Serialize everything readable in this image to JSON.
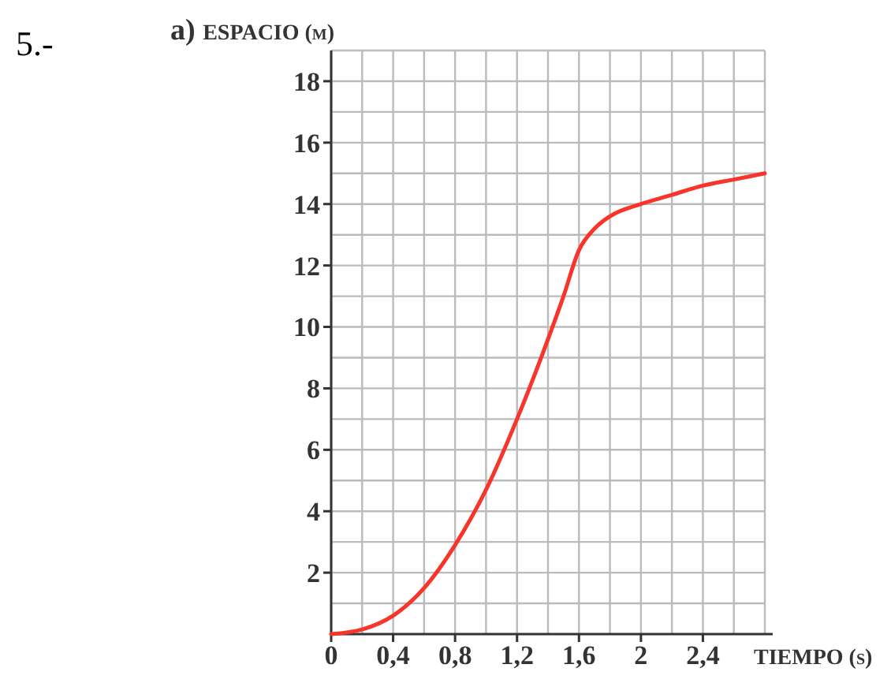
{
  "chart_data": {
    "type": "line",
    "ylabel": "ESPACIO (m)",
    "xlabel": "TIEMPO (s)",
    "annotations": [
      "5.-",
      "a)"
    ],
    "x": [
      0,
      0.2,
      0.4,
      0.6,
      0.8,
      1.0,
      1.2,
      1.4,
      1.5,
      1.6,
      1.7,
      1.8,
      2.0,
      2.2,
      2.4,
      2.6,
      2.8
    ],
    "series": [
      {
        "color": "#f8352a",
        "values": [
          0,
          0.15,
          0.6,
          1.5,
          2.9,
          4.7,
          7,
          9.6,
          11,
          12.5,
          13.2,
          13.6,
          14,
          14.3,
          14.6,
          14.8,
          15
        ]
      }
    ],
    "xlim": [
      0,
      2.8
    ],
    "ylim": [
      0,
      19
    ],
    "xticks": [
      0,
      {
        "value": 0.2,
        "label": null
      },
      {
        "value": 0.4,
        "label": "0,4"
      },
      {
        "value": 0.6,
        "label": null
      },
      {
        "value": 0.8,
        "label": "0,8"
      },
      {
        "value": 1.0,
        "label": null
      },
      {
        "value": 1.2,
        "label": "1,2"
      },
      {
        "value": 1.4,
        "label": null
      },
      {
        "value": 1.6,
        "label": "1,6"
      },
      {
        "value": 1.8,
        "label": null
      },
      2,
      {
        "value": 2.2,
        "label": null
      },
      {
        "value": 2.4,
        "label": "2,4"
      },
      {
        "value": 2.6,
        "label": null
      },
      {
        "value": 2.8,
        "label": null
      }
    ],
    "yticks": [
      {
        "value": 1,
        "label": null
      },
      2,
      {
        "value": 3,
        "label": null
      },
      4,
      {
        "value": 5,
        "label": null
      },
      6,
      {
        "value": 7,
        "label": null
      },
      8,
      {
        "value": 9,
        "label": null
      },
      10,
      {
        "value": 11,
        "label": null
      },
      12,
      {
        "value": 13,
        "label": null
      },
      14,
      {
        "value": 15,
        "label": null
      },
      16,
      {
        "value": 17,
        "label": null
      },
      18,
      {
        "value": 19,
        "label": null
      }
    ],
    "grid": true,
    "marker": "none",
    "line_style": "solid"
  }
}
